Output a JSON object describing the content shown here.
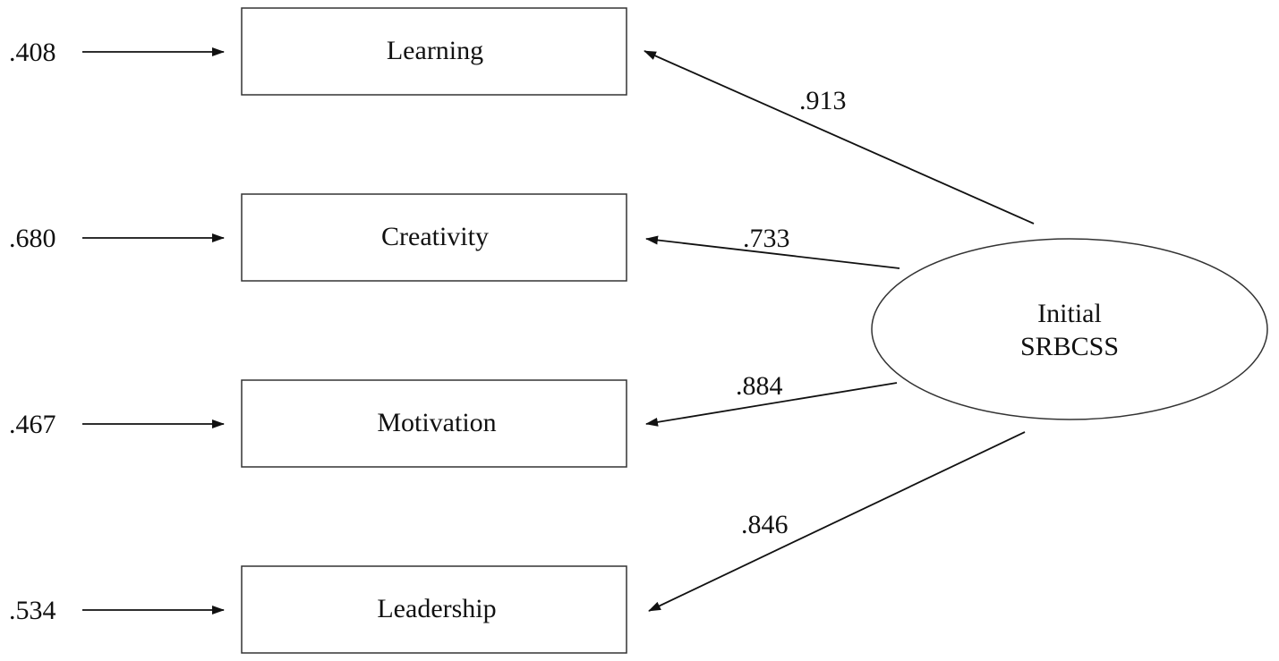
{
  "latent": {
    "line1": "Initial",
    "line2": "SRBCSS"
  },
  "indicators": [
    {
      "label": "Learning",
      "error": ".408",
      "loading": ".913"
    },
    {
      "label": "Creativity",
      "error": ".680",
      "loading": ".733"
    },
    {
      "label": "Motivation",
      "error": ".467",
      "loading": ".884"
    },
    {
      "label": "Leadership",
      "error": ".534",
      "loading": ".846"
    }
  ]
}
